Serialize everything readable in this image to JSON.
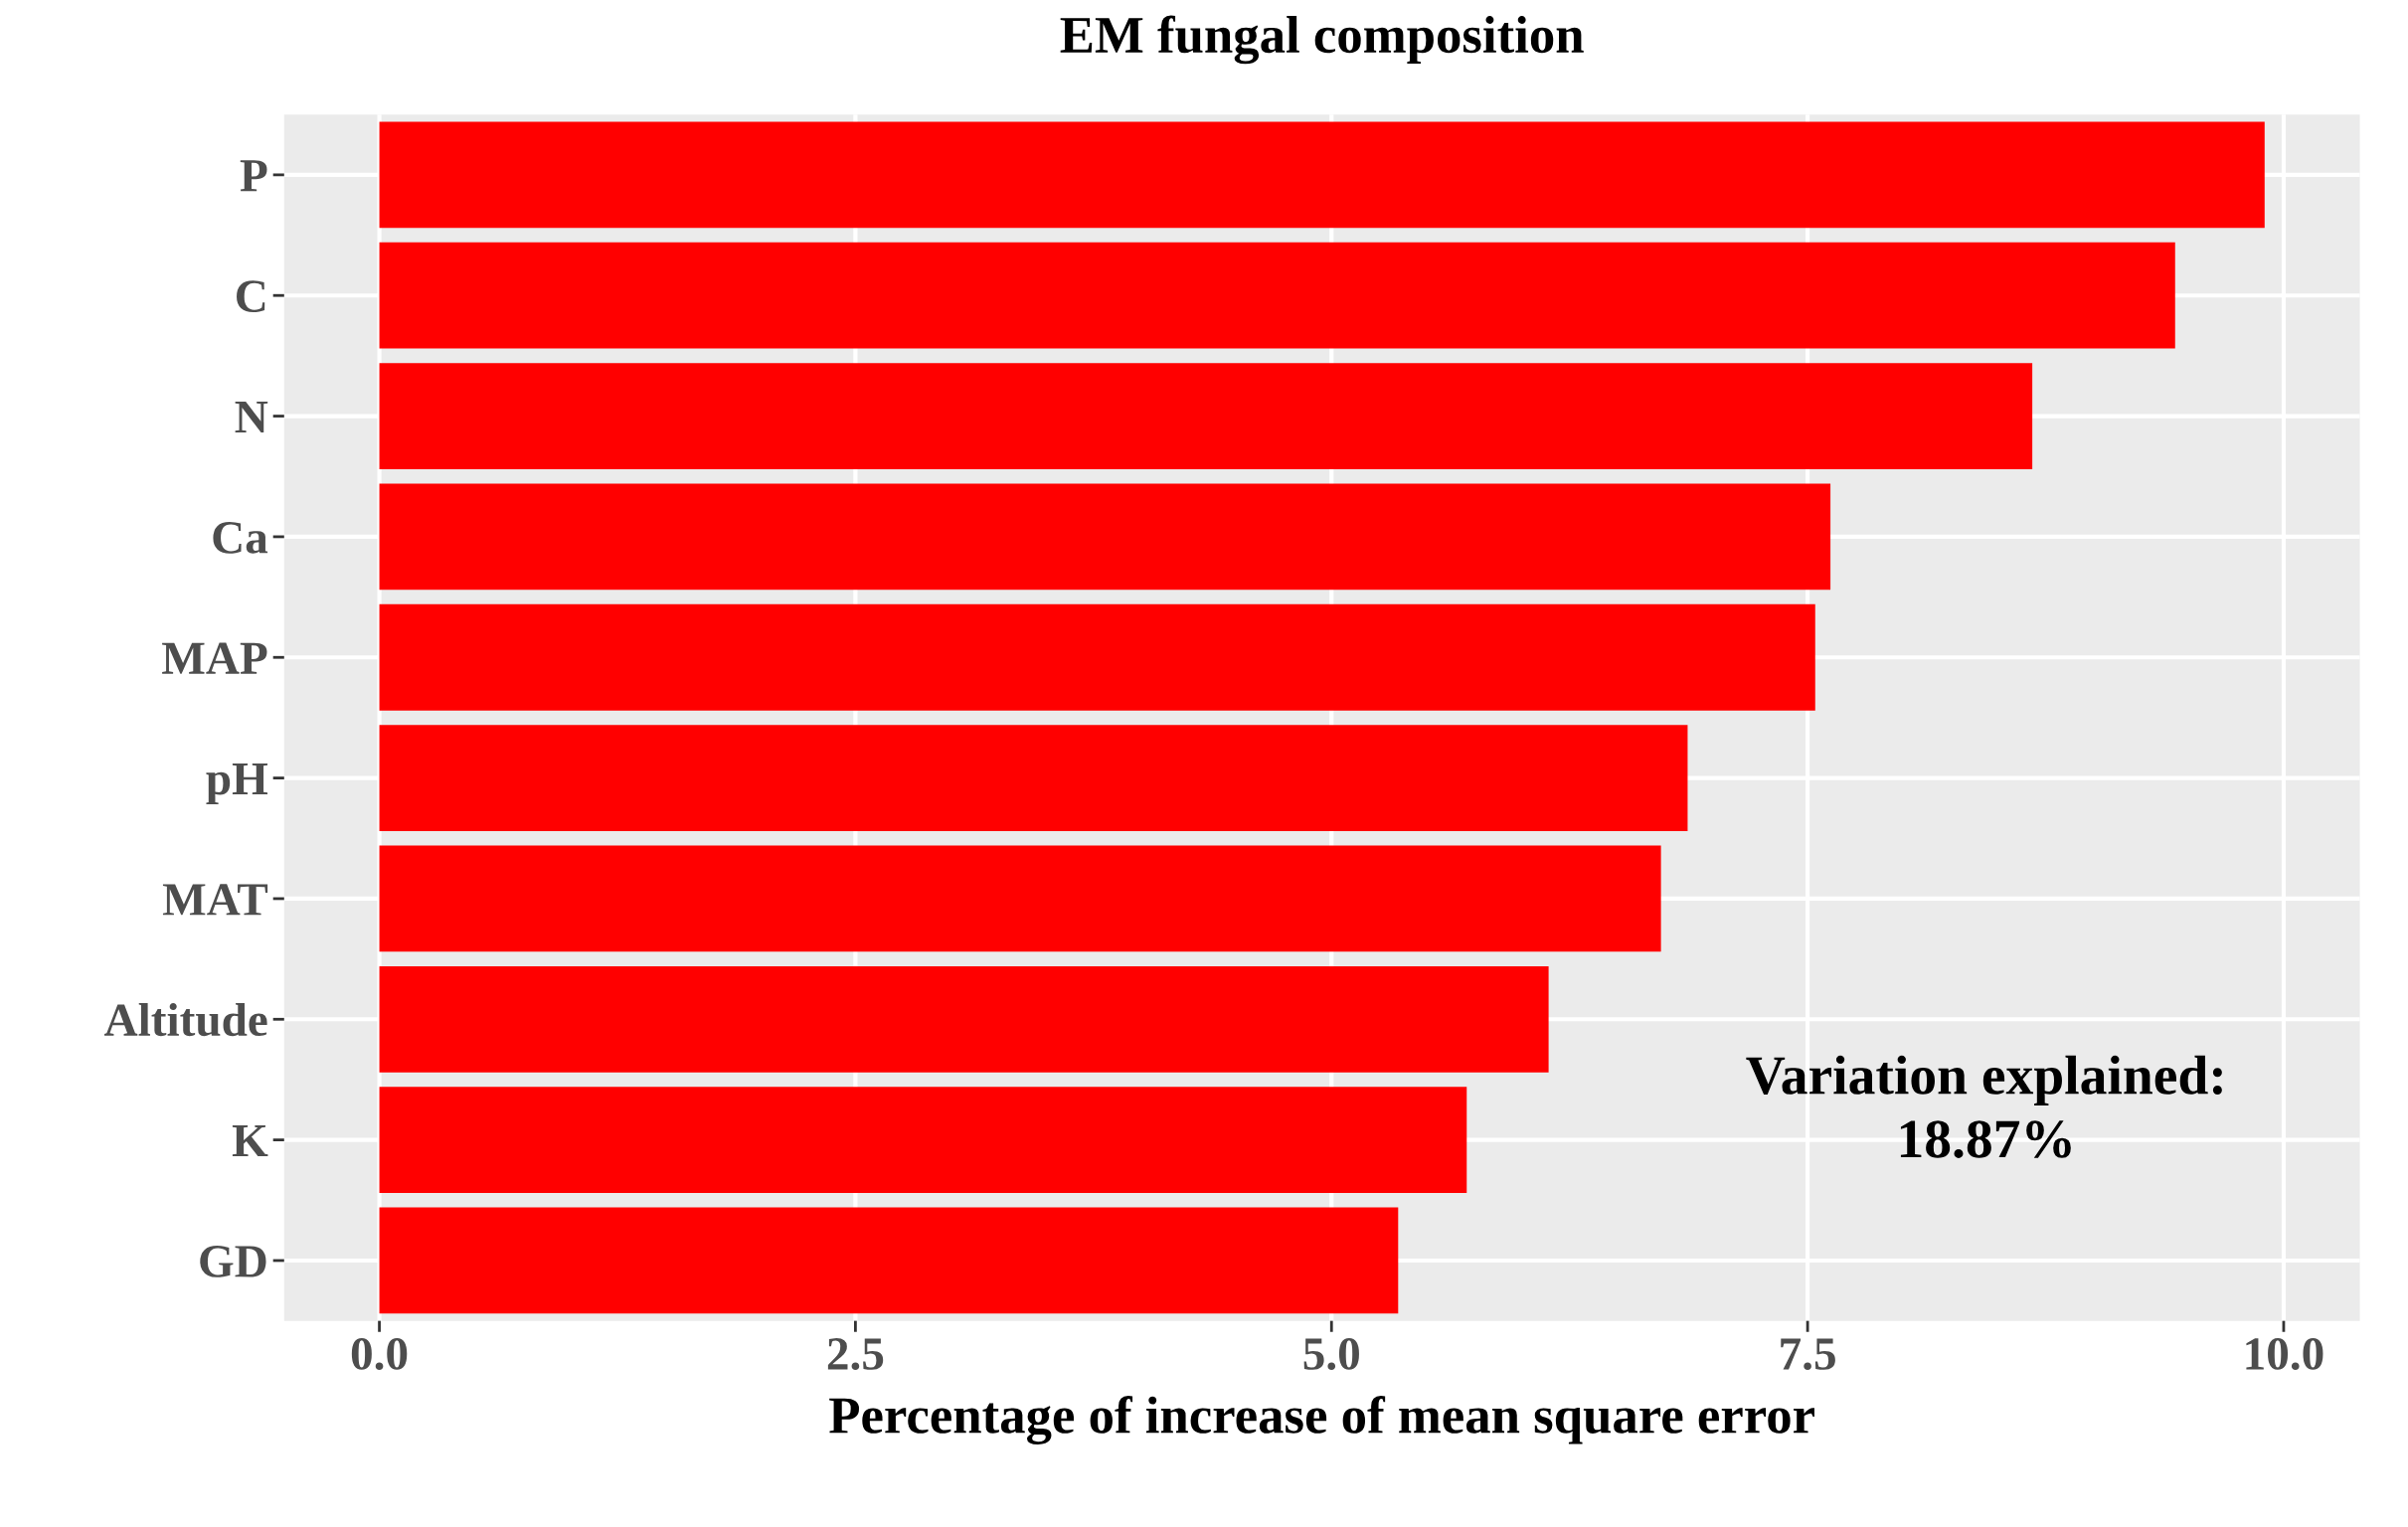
{
  "chart_data": {
    "type": "bar",
    "orientation": "horizontal",
    "title": "EM fungal composition",
    "xlabel": "Percentage of increase of mean square error",
    "categories": [
      "P",
      "C",
      "N",
      "Ca",
      "MAP",
      "pH",
      "MAT",
      "Altitude",
      "K",
      "GD"
    ],
    "values": [
      9.9,
      9.43,
      8.68,
      7.62,
      7.54,
      6.87,
      6.73,
      6.14,
      5.71,
      5.35
    ],
    "color": "#ff0000",
    "xlim": [
      -0.5,
      10.4
    ],
    "xticks": [
      {
        "value": 0,
        "label": "0.0"
      },
      2.5,
      {
        "value": 5,
        "label": "5.0"
      },
      7.5,
      {
        "value": 10,
        "label": "10.0"
      }
    ],
    "grid": true,
    "annotations": [
      "Variation explained:\n18.87%"
    ]
  }
}
